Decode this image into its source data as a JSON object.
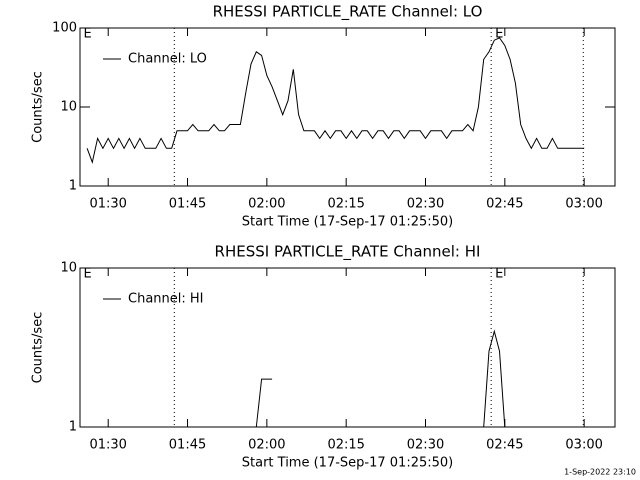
{
  "chart_data": [
    {
      "type": "line",
      "title": "RHESSI PARTICLE_RATE Channel: LO",
      "x_label": "Start Time (17-Sep-17 01:25:50)",
      "y_label": "Counts/sec",
      "log_y": true,
      "xlim": [
        "01:24:40",
        "03:05:50"
      ],
      "xticks": [
        "01:30",
        "01:45",
        "02:00",
        "02:15",
        "02:30",
        "02:45",
        "03:00"
      ],
      "ylim": [
        1,
        100
      ],
      "yticks": [
        1,
        10,
        100
      ],
      "markers": [
        "01:42:30",
        "02:42:25",
        "02:59:50"
      ],
      "annotations": [
        {
          "x": "01:25:20",
          "text": "E"
        },
        {
          "x": "02:43:10",
          "text": "E"
        }
      ],
      "x": [
        "01:26",
        "01:27",
        "01:28",
        "01:29",
        "01:30",
        "01:31",
        "01:32",
        "01:33",
        "01:34",
        "01:35",
        "01:36",
        "01:37",
        "01:38",
        "01:39",
        "01:40",
        "01:41",
        "01:42",
        "01:43",
        "01:44",
        "01:45",
        "01:46",
        "01:47",
        "01:48",
        "01:49",
        "01:50",
        "01:51",
        "01:52",
        "01:53",
        "01:54",
        "01:55",
        "01:56",
        "01:57",
        "01:58",
        "01:59",
        "02:00",
        "02:01",
        "02:02",
        "02:03",
        "02:04",
        "02:05",
        "02:06",
        "02:07",
        "02:08",
        "02:09",
        "02:10",
        "02:11",
        "02:12",
        "02:13",
        "02:14",
        "02:15",
        "02:16",
        "02:17",
        "02:18",
        "02:19",
        "02:20",
        "02:21",
        "02:22",
        "02:23",
        "02:24",
        "02:25",
        "02:26",
        "02:27",
        "02:28",
        "02:29",
        "02:30",
        "02:31",
        "02:32",
        "02:33",
        "02:34",
        "02:35",
        "02:36",
        "02:37",
        "02:38",
        "02:39",
        "02:40",
        "02:41",
        "02:42",
        "02:43",
        "02:44",
        "02:45",
        "02:46",
        "02:47",
        "02:48",
        "02:49",
        "02:50",
        "02:51",
        "02:52",
        "02:53",
        "02:54",
        "02:55",
        "02:56",
        "02:57",
        "02:58",
        "02:59",
        "03:00"
      ],
      "series": [
        {
          "name": "Channel: LO",
          "color": "#000000",
          "values": [
            3,
            2,
            4,
            3,
            4,
            3,
            4,
            3,
            4,
            3,
            4,
            3,
            3,
            3,
            4,
            3,
            3,
            5,
            5,
            5,
            6,
            5,
            5,
            5,
            6,
            5,
            5,
            6,
            6,
            6,
            15,
            35,
            50,
            45,
            25,
            18,
            12,
            8,
            12,
            30,
            8,
            5,
            5,
            5,
            4,
            5,
            4,
            5,
            5,
            4,
            5,
            4,
            5,
            5,
            4,
            5,
            5,
            4,
            5,
            5,
            4,
            5,
            5,
            5,
            4,
            5,
            5,
            5,
            4,
            5,
            5,
            5,
            6,
            5,
            10,
            40,
            50,
            70,
            75,
            60,
            40,
            20,
            6,
            4,
            3,
            4,
            3,
            3,
            4,
            3,
            3,
            3,
            3,
            3,
            3
          ]
        }
      ]
    },
    {
      "type": "line",
      "title": "RHESSI PARTICLE_RATE Channel: HI",
      "x_label": "Start Time (17-Sep-17 01:25:50)",
      "y_label": "Counts/sec",
      "log_y": true,
      "xlim": [
        "01:24:40",
        "03:05:50"
      ],
      "xticks": [
        "01:30",
        "01:45",
        "02:00",
        "02:15",
        "02:30",
        "02:45",
        "03:00"
      ],
      "ylim": [
        1,
        10
      ],
      "yticks": [
        1,
        10
      ],
      "markers": [
        "01:42:30",
        "02:42:25",
        "02:59:50"
      ],
      "annotations": [
        {
          "x": "01:25:20",
          "text": "E"
        },
        {
          "x": "02:43:10",
          "text": "E"
        }
      ],
      "x": [
        "01:58",
        "01:59",
        "02:00",
        "02:01",
        "02:02",
        "02:41",
        "02:42",
        "02:43",
        "02:44",
        "02:45"
      ],
      "series": [
        {
          "name": "Channel: HI",
          "color": "#000000",
          "values": [
            1,
            2,
            2,
            2,
            null,
            1,
            3,
            4,
            3,
            1
          ]
        }
      ]
    }
  ],
  "footer": "1-Sep-2022 23:10"
}
